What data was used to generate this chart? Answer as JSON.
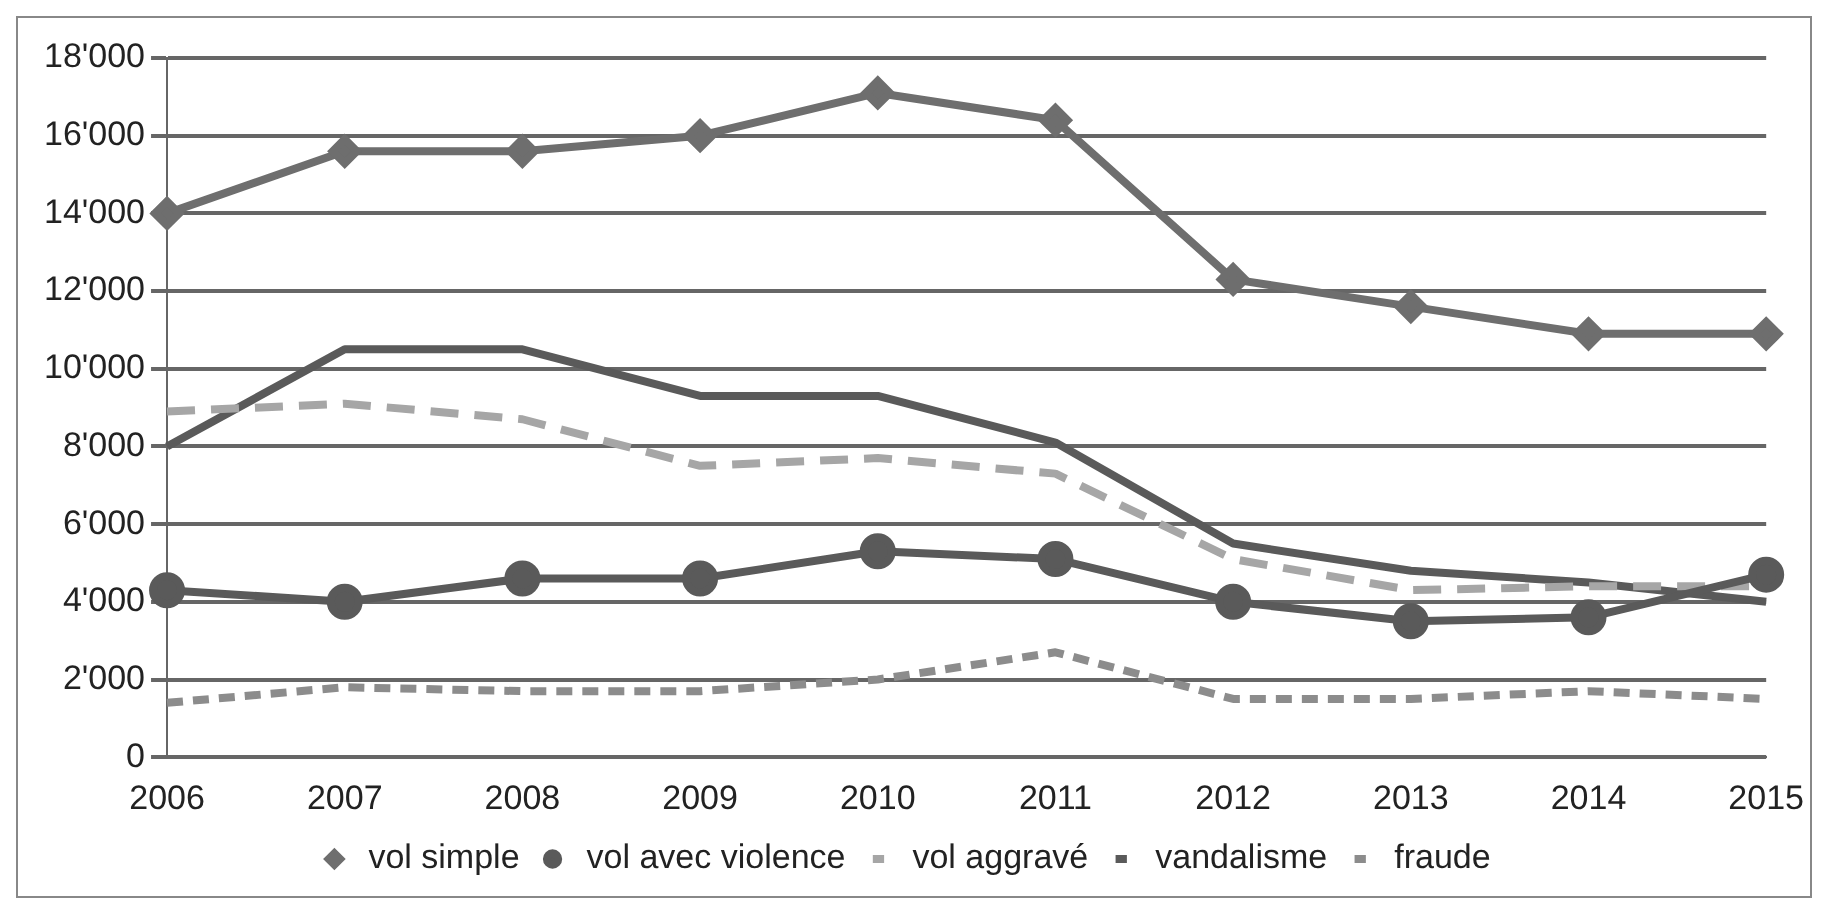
{
  "chart_data": {
    "type": "line",
    "categories": [
      "2006",
      "2007",
      "2008",
      "2009",
      "2010",
      "2011",
      "2012",
      "2013",
      "2014",
      "2015"
    ],
    "series": [
      {
        "name": "vol simple",
        "color": "#6e6e6e",
        "marker": "diamond",
        "line_style": "solid",
        "values": [
          14000,
          15600,
          15600,
          16000,
          17100,
          16400,
          12300,
          11600,
          10900,
          10900
        ]
      },
      {
        "name": "vol avec violence",
        "color": "#5a5a5a",
        "marker": "circle",
        "line_style": "solid",
        "values": [
          4300,
          4000,
          4600,
          4600,
          5300,
          5100,
          4000,
          3500,
          3600,
          4700
        ]
      },
      {
        "name": "vol aggravé",
        "color": "#a6a6a6",
        "marker": "none",
        "line_style": "dashed",
        "values": [
          8900,
          9100,
          8700,
          7500,
          7700,
          7300,
          5100,
          4300,
          4400,
          4400
        ]
      },
      {
        "name": "vandalisme",
        "color": "#5a5a5a",
        "marker": "none",
        "line_style": "solid",
        "values": [
          8000,
          10500,
          10500,
          9300,
          9300,
          8100,
          5500,
          4800,
          4500,
          4000
        ]
      },
      {
        "name": "fraude",
        "color": "#8c8c8c",
        "marker": "none",
        "line_style": "dotted",
        "values": [
          1400,
          1800,
          1700,
          1700,
          2000,
          2700,
          1500,
          1500,
          1700,
          1500
        ]
      }
    ],
    "ylim": [
      0,
      18000
    ],
    "yticks": [
      0,
      {
        "value": 2000,
        "label": "2'000"
      },
      {
        "value": 4000,
        "label": "4'000"
      },
      {
        "value": 6000,
        "label": "6'000"
      },
      {
        "value": 8000,
        "label": "8'000"
      },
      {
        "value": 10000,
        "label": "10'000"
      },
      {
        "value": 12000,
        "label": "12'000"
      },
      {
        "value": 14000,
        "label": "14'000"
      },
      {
        "value": 16000,
        "label": "16'000"
      },
      {
        "value": 18000,
        "label": "18'000"
      }
    ],
    "grid": "y",
    "legend": "bottom"
  }
}
